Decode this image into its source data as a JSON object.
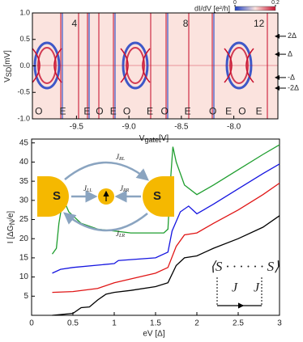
{
  "chart_data": [
    {
      "type": "heatmap",
      "xlabel": {
        "main": "V",
        "sub": "gate",
        "unit": "[V]"
      },
      "ylabel": {
        "main": "V",
        "sub": "SD",
        "unit": "[mV]"
      },
      "xlim": [
        -9.92,
        -7.58
      ],
      "xticks": [
        -9.5,
        {
          "value": -9,
          "label": "-9.0"
        },
        -8.5,
        {
          "value": -8,
          "label": "-8.0"
        }
      ],
      "ylim": [
        -1,
        1
      ],
      "yticks": [
        {
          "value": -1,
          "label": "-1.0"
        },
        -0.5,
        {
          "value": 0,
          "label": "0.0"
        },
        0.5,
        {
          "value": 1,
          "label": "1.0"
        }
      ],
      "colorbar": {
        "label": "dI/dV [e²/h]",
        "lim": [
          0,
          0.2
        ],
        "ticks": [
          0,
          0.2
        ]
      },
      "colormap": [
        "#1c3fc4",
        "#fbe3de",
        "#c8102e"
      ],
      "annotations": [
        {
          "text": "O",
          "x": -9.86,
          "y": -0.87
        },
        {
          "text": "E",
          "x": -9.63,
          "y": -0.87
        },
        {
          "text": "E",
          "x": -9.4,
          "y": -0.87
        },
        {
          "text": "O",
          "x": -9.28,
          "y": -0.87
        },
        {
          "text": "E",
          "x": -9.15,
          "y": -0.87
        },
        {
          "text": "O",
          "x": -9.02,
          "y": -0.87
        },
        {
          "text": "E",
          "x": -8.8,
          "y": -0.87
        },
        {
          "text": "O",
          "x": -8.66,
          "y": -0.87
        },
        {
          "text": "E",
          "x": -8.44,
          "y": -0.87
        },
        {
          "text": "O",
          "x": -8.2,
          "y": -0.87
        },
        {
          "text": "E",
          "x": -8.05,
          "y": -0.87
        },
        {
          "text": "O",
          "x": -7.92,
          "y": -0.87
        },
        {
          "text": "E",
          "x": -7.76,
          "y": -0.87
        },
        {
          "text": "4",
          "x": -9.52,
          "y": 0.79
        },
        {
          "text": "8",
          "x": -8.46,
          "y": 0.79
        },
        {
          "text": "12",
          "x": -7.76,
          "y": 0.79
        }
      ],
      "markers": [
        {
          "text": "2Δ",
          "y": 0.56
        },
        {
          "text": "Δ",
          "y": 0.22
        },
        {
          "text": "-Δ",
          "y": -0.22
        },
        {
          "text": "-2Δ",
          "y": -0.42
        }
      ]
    },
    {
      "type": "line",
      "xlabel": "eV [Δ]",
      "ylabel": {
        "main": "I [ΔG",
        "sub": "N",
        "unit": "/e]"
      },
      "xlim": [
        0,
        3
      ],
      "xticks": [
        0,
        0.5,
        1,
        1.5,
        2,
        2.5,
        3
      ],
      "ylim": [
        0,
        46
      ],
      "yticks": [
        5,
        10,
        15,
        20,
        25,
        30,
        35,
        40,
        45
      ],
      "series": [
        {
          "color": "#1f9e2f",
          "x": [
            0.25,
            0.3,
            0.33,
            0.38,
            0.45,
            0.6,
            0.8,
            1,
            1.2,
            1.6,
            1.65,
            1.68,
            1.71,
            1.75,
            1.85,
            2,
            2.2,
            2.5,
            2.8,
            3
          ],
          "values": [
            16,
            17.5,
            24,
            30.5,
            27,
            24,
            22.5,
            22,
            21.5,
            21.5,
            22.5,
            35,
            44,
            40,
            34,
            31.5,
            34,
            38,
            42,
            44.5
          ]
        },
        {
          "color": "#1515e0",
          "x": [
            0.25,
            0.35,
            0.5,
            1,
            1.05,
            1.5,
            1.65,
            1.7,
            1.8,
            1.9,
            2,
            2.2,
            2.5,
            2.8,
            3
          ],
          "values": [
            11,
            12,
            12.5,
            13.5,
            14.3,
            15,
            16.5,
            22,
            27,
            28.5,
            26.5,
            29,
            33,
            37,
            39.5
          ]
        },
        {
          "color": "#e01515",
          "x": [
            0.25,
            0.5,
            0.8,
            1,
            1.2,
            1.5,
            1.65,
            1.75,
            1.85,
            2,
            2.2,
            2.5,
            2.8,
            3
          ],
          "values": [
            6,
            6.2,
            7,
            8.5,
            9.5,
            11,
            12.5,
            18,
            21,
            21.5,
            24,
            27.5,
            31.5,
            34.5
          ]
        },
        {
          "color": "#000000",
          "x": [
            0.25,
            0.5,
            0.6,
            0.7,
            0.8,
            0.9,
            1,
            1.2,
            1.5,
            1.65,
            1.75,
            1.85,
            2,
            2.2,
            2.5,
            2.8,
            3
          ],
          "values": [
            0,
            0.5,
            2,
            2.2,
            4,
            5.5,
            6,
            6.5,
            7.5,
            8.5,
            13,
            15,
            15.5,
            17.5,
            20,
            23,
            26
          ]
        }
      ]
    }
  ],
  "inset_diagram": {
    "left": "S",
    "right": "S",
    "j_rl": {
      "main": "J",
      "sub": "RL"
    },
    "j_ll": {
      "main": "J",
      "sub": "LL"
    },
    "j_rr": {
      "main": "J",
      "sub": "RR"
    },
    "j_lr": {
      "main": "J",
      "sub": "LR"
    }
  },
  "inset_chain": {
    "text": "⟨S · · · · · · S⟩",
    "j_left": "J",
    "j_right": "J"
  }
}
